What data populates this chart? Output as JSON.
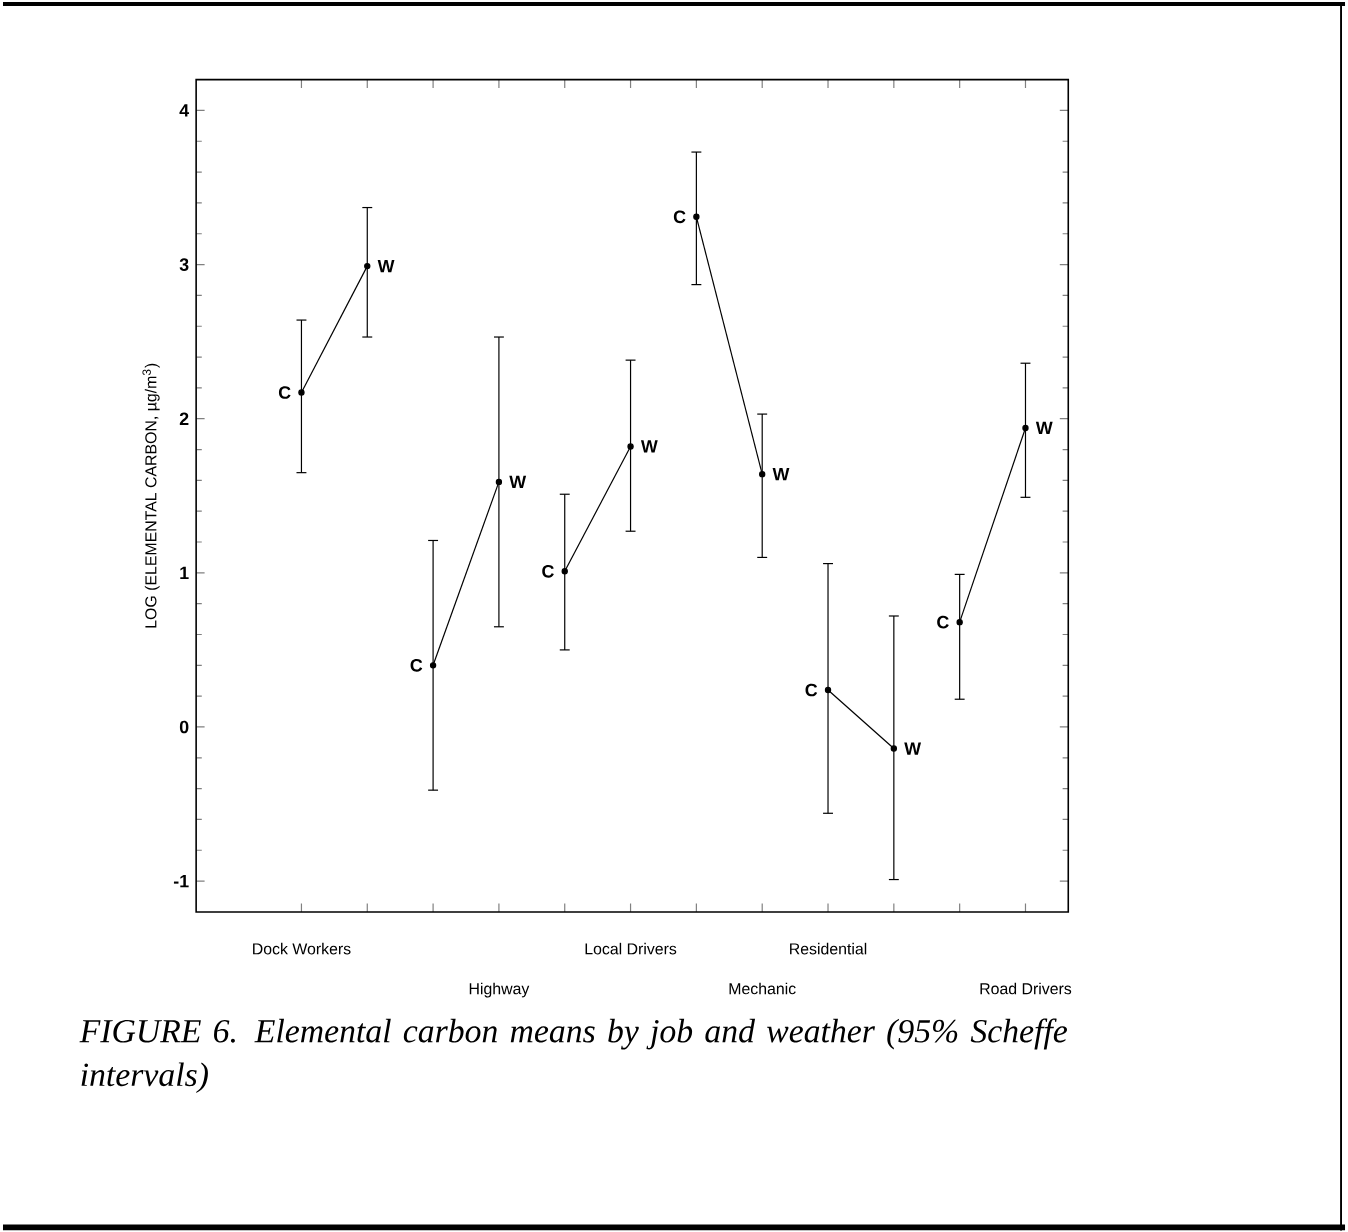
{
  "chart_data": {
    "type": "line",
    "title": "FIGURE 6.  Elemental carbon means by job and weather (95% Scheffe intervals)",
    "ylabel": "LOG (ELEMENTAL CARBON, µg/m$^{3}$)",
    "categories": [
      "Dock Workers",
      null,
      null,
      "Highway",
      null,
      "Local Drivers",
      null,
      "Mechanic",
      "Residential",
      null,
      null,
      "Road Drivers"
    ],
    "marker": "circle",
    "ylim": [
      -1.2,
      4.2
    ],
    "yticks": [
      -1,
      0,
      1,
      2,
      3,
      4
    ],
    "series": [
      {
        "color": "#000000",
        "values": [
          2.17,
          2.99,
          null,
          null,
          null,
          null,
          null,
          null,
          null,
          null,
          null,
          null
        ],
        "errors": [
          [
            1.65,
            2.64
          ],
          [
            2.53,
            3.37
          ],
          null,
          null,
          null,
          null,
          null,
          null,
          null,
          null,
          null,
          null
        ],
        "value_labels": [
          "C",
          "W",
          null,
          null,
          null,
          null,
          null,
          null,
          null,
          null,
          null,
          null
        ]
      },
      {
        "color": "#000000",
        "values": [
          null,
          null,
          0.4,
          1.59,
          null,
          null,
          null,
          null,
          null,
          null,
          null,
          null
        ],
        "errors": [
          null,
          null,
          [
            -0.41,
            1.21
          ],
          [
            0.65,
            2.53
          ],
          null,
          null,
          null,
          null,
          null,
          null,
          null,
          null
        ],
        "value_labels": [
          null,
          null,
          "C",
          "W",
          null,
          null,
          null,
          null,
          null,
          null,
          null,
          null
        ]
      },
      {
        "color": "#000000",
        "values": [
          null,
          null,
          null,
          null,
          1.01,
          1.82,
          null,
          null,
          null,
          null,
          null,
          null
        ],
        "errors": [
          null,
          null,
          null,
          null,
          [
            0.5,
            1.51
          ],
          [
            1.27,
            2.38
          ],
          null,
          null,
          null,
          null,
          null,
          null
        ],
        "value_labels": [
          null,
          null,
          null,
          null,
          "C",
          "W",
          null,
          null,
          null,
          null,
          null,
          null
        ]
      },
      {
        "color": "#000000",
        "values": [
          null,
          null,
          null,
          null,
          null,
          null,
          3.31,
          1.64,
          null,
          null,
          null,
          null
        ],
        "errors": [
          null,
          null,
          null,
          null,
          null,
          null,
          [
            2.87,
            3.73
          ],
          [
            1.1,
            2.03
          ],
          null,
          null,
          null,
          null
        ],
        "value_labels": [
          null,
          null,
          null,
          null,
          null,
          null,
          "C",
          "W",
          null,
          null,
          null,
          null
        ]
      },
      {
        "color": "#000000",
        "values": [
          null,
          null,
          null,
          null,
          null,
          null,
          null,
          null,
          0.24,
          -0.14,
          null,
          null
        ],
        "errors": [
          null,
          null,
          null,
          null,
          null,
          null,
          null,
          null,
          [
            -0.56,
            1.06
          ],
          [
            -0.99,
            0.72
          ],
          null,
          null
        ],
        "value_labels": [
          null,
          null,
          null,
          null,
          null,
          null,
          null,
          null,
          "C",
          "W",
          null,
          null
        ]
      },
      {
        "color": "#000000",
        "values": [
          null,
          null,
          null,
          null,
          null,
          null,
          null,
          null,
          null,
          null,
          0.68,
          1.94
        ],
        "errors": [
          null,
          null,
          null,
          null,
          null,
          null,
          null,
          null,
          null,
          null,
          [
            0.18,
            0.99
          ],
          [
            1.49,
            2.36
          ]
        ],
        "value_labels": [
          null,
          null,
          null,
          null,
          null,
          null,
          null,
          null,
          null,
          null,
          "C",
          "W"
        ]
      }
    ]
  }
}
